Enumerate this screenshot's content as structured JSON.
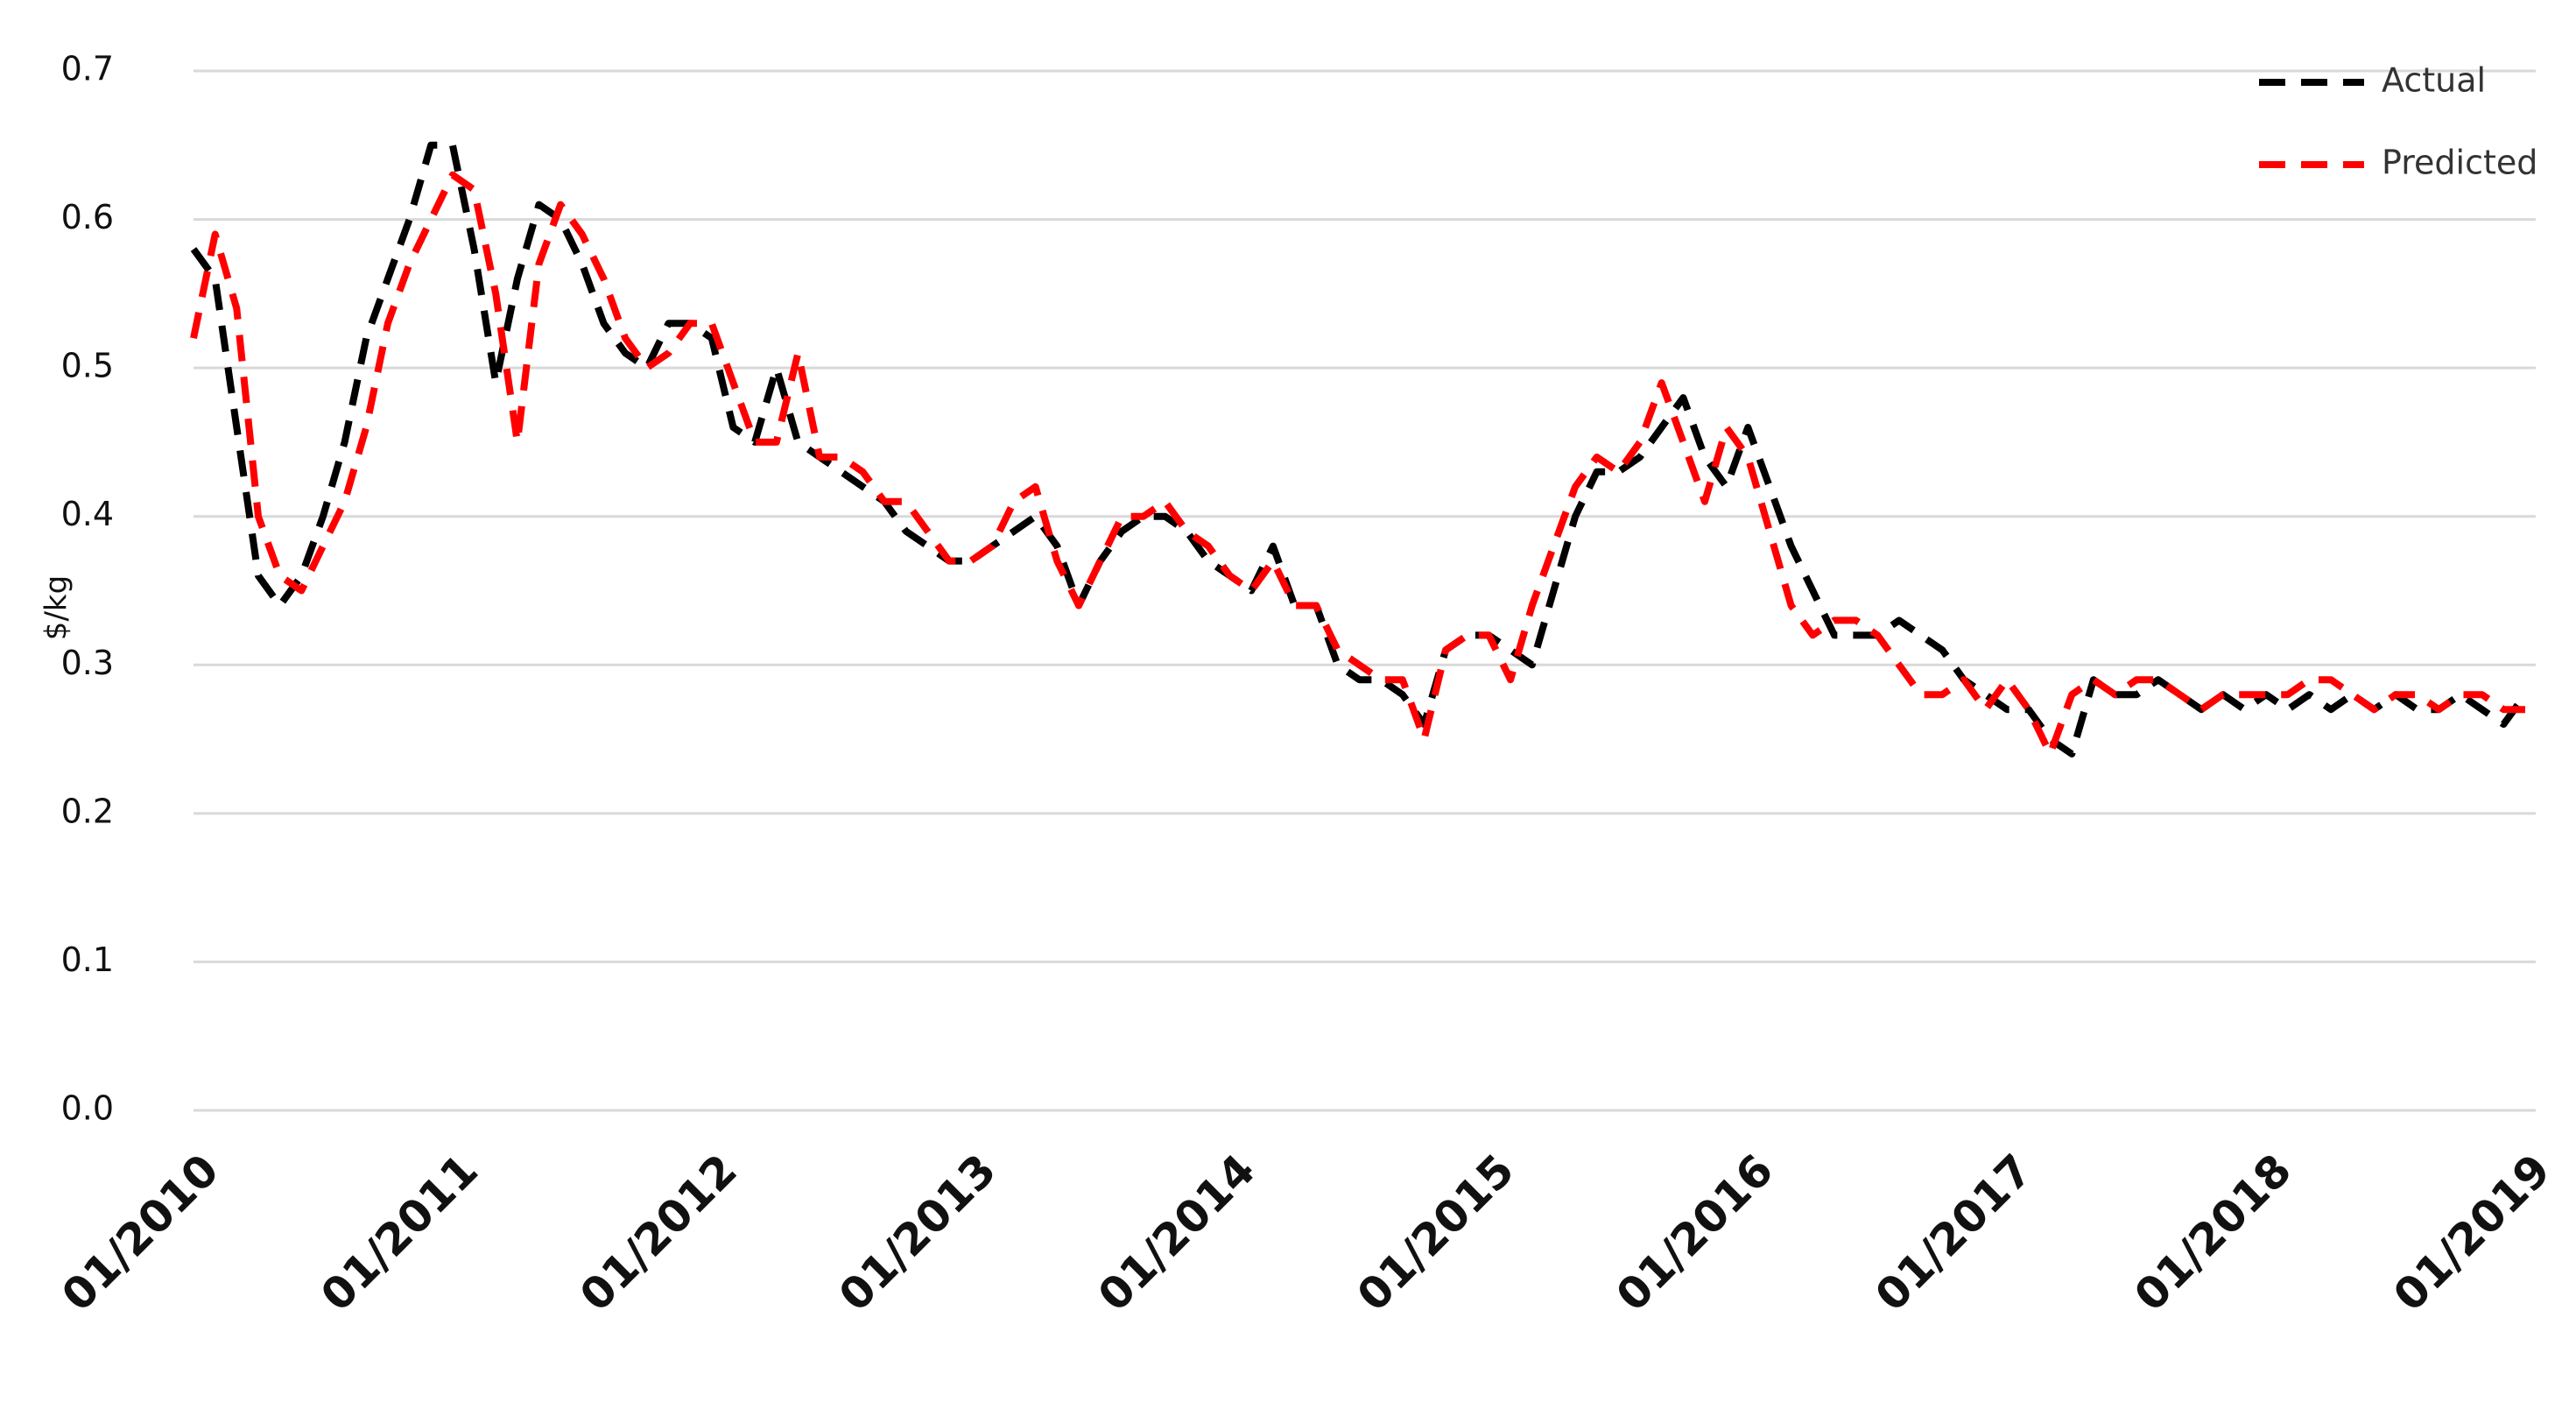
{
  "chart_data": {
    "type": "line",
    "y_label": "$/kg",
    "x": [
      "01/2010",
      "02/2010",
      "03/2010",
      "04/2010",
      "05/2010",
      "06/2010",
      "07/2010",
      "08/2010",
      "09/2010",
      "10/2010",
      "11/2010",
      "12/2010",
      "01/2011",
      "02/2011",
      "03/2011",
      "04/2011",
      "05/2011",
      "06/2011",
      "07/2011",
      "08/2011",
      "09/2011",
      "10/2011",
      "11/2011",
      "12/2011",
      "01/2012",
      "02/2012",
      "03/2012",
      "04/2012",
      "05/2012",
      "06/2012",
      "07/2012",
      "08/2012",
      "09/2012",
      "10/2012",
      "11/2012",
      "12/2012",
      "01/2013",
      "02/2013",
      "03/2013",
      "04/2013",
      "05/2013",
      "06/2013",
      "07/2013",
      "08/2013",
      "09/2013",
      "10/2013",
      "11/2013",
      "12/2013",
      "01/2014",
      "02/2014",
      "03/2014",
      "04/2014",
      "05/2014",
      "06/2014",
      "07/2014",
      "08/2014",
      "09/2014",
      "10/2014",
      "11/2014",
      "12/2014",
      "01/2015",
      "02/2015",
      "03/2015",
      "04/2015",
      "05/2015",
      "06/2015",
      "07/2015",
      "08/2015",
      "09/2015",
      "10/2015",
      "11/2015",
      "12/2015",
      "01/2016",
      "02/2016",
      "03/2016",
      "04/2016",
      "05/2016",
      "06/2016",
      "07/2016",
      "08/2016",
      "09/2016",
      "10/2016",
      "11/2016",
      "12/2016",
      "01/2017",
      "02/2017",
      "03/2017",
      "04/2017",
      "05/2017",
      "06/2017",
      "07/2017",
      "08/2017",
      "09/2017",
      "10/2017",
      "11/2017",
      "12/2017",
      "01/2018",
      "02/2018",
      "03/2018",
      "04/2018",
      "05/2018",
      "06/2018",
      "07/2018",
      "08/2018",
      "09/2018",
      "10/2018",
      "11/2018",
      "12/2018",
      "01/2019"
    ],
    "xticks": [
      "01/2010",
      "01/2011",
      "01/2012",
      "01/2013",
      "01/2014",
      "01/2015",
      "01/2016",
      "01/2017",
      "01/2018",
      "01/2019"
    ],
    "series": [
      {
        "name": "Actual",
        "color": "#000000",
        "values": [
          0.58,
          0.56,
          0.46,
          0.36,
          0.34,
          0.36,
          0.4,
          0.45,
          0.52,
          0.56,
          0.6,
          0.65,
          0.65,
          0.58,
          0.49,
          0.56,
          0.61,
          0.6,
          0.57,
          0.53,
          0.51,
          0.5,
          0.53,
          0.53,
          0.52,
          0.46,
          0.45,
          0.5,
          0.45,
          0.44,
          0.43,
          0.42,
          0.41,
          0.39,
          0.38,
          0.37,
          0.37,
          0.38,
          0.39,
          0.4,
          0.38,
          0.34,
          0.37,
          0.39,
          0.4,
          0.4,
          0.39,
          0.37,
          0.36,
          0.35,
          0.38,
          0.34,
          0.34,
          0.3,
          0.29,
          0.29,
          0.28,
          0.26,
          0.31,
          0.32,
          0.32,
          0.31,
          0.3,
          0.35,
          0.4,
          0.43,
          0.43,
          0.44,
          0.46,
          0.48,
          0.44,
          0.42,
          0.46,
          0.42,
          0.38,
          0.35,
          0.32,
          0.32,
          0.32,
          0.33,
          0.32,
          0.31,
          0.29,
          0.28,
          0.27,
          0.27,
          0.25,
          0.24,
          0.29,
          0.28,
          0.28,
          0.29,
          0.28,
          0.27,
          0.28,
          0.27,
          0.28,
          0.27,
          0.28,
          0.27,
          0.28,
          0.27,
          0.28,
          0.27,
          0.27,
          0.28,
          0.27,
          0.26,
          0.28
        ]
      },
      {
        "name": "Predicted",
        "color": "#ff0000",
        "values": [
          0.52,
          0.59,
          0.54,
          0.4,
          0.36,
          0.35,
          0.38,
          0.41,
          0.46,
          0.53,
          0.57,
          0.6,
          0.63,
          0.62,
          0.55,
          0.45,
          0.57,
          0.61,
          0.59,
          0.56,
          0.52,
          0.5,
          0.51,
          0.53,
          0.53,
          0.49,
          0.45,
          0.45,
          0.51,
          0.44,
          0.44,
          0.43,
          0.41,
          0.41,
          0.39,
          0.37,
          0.37,
          0.38,
          0.41,
          0.42,
          0.37,
          0.34,
          0.37,
          0.4,
          0.4,
          0.41,
          0.39,
          0.38,
          0.36,
          0.35,
          0.37,
          0.34,
          0.34,
          0.31,
          0.3,
          0.29,
          0.29,
          0.25,
          0.31,
          0.32,
          0.32,
          0.29,
          0.34,
          0.38,
          0.42,
          0.44,
          0.43,
          0.45,
          0.49,
          0.45,
          0.41,
          0.46,
          0.44,
          0.39,
          0.34,
          0.32,
          0.33,
          0.33,
          0.32,
          0.3,
          0.28,
          0.28,
          0.29,
          0.27,
          0.29,
          0.27,
          0.24,
          0.28,
          0.29,
          0.28,
          0.29,
          0.29,
          0.28,
          0.27,
          0.28,
          0.28,
          0.28,
          0.28,
          0.29,
          0.29,
          0.28,
          0.27,
          0.28,
          0.28,
          0.27,
          0.28,
          0.28,
          0.27,
          0.27
        ]
      }
    ],
    "ylim": [
      0,
      0.7
    ],
    "yticks": [
      {
        "value": 0,
        "label": "0.0"
      },
      0.1,
      0.2,
      0.3,
      0.4,
      0.5,
      0.6,
      0.7
    ],
    "grid": true,
    "dashed": true,
    "legend": "upper right"
  }
}
